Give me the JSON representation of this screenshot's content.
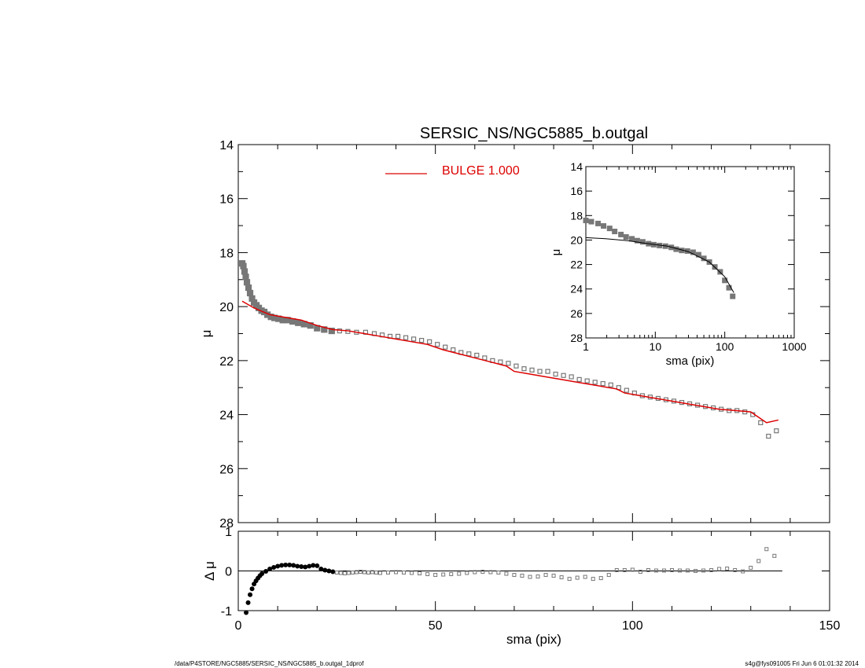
{
  "figure": {
    "footer_left": "/data/P4STORE/NGC5885/SERSIC_NS/NGC5885_b.outgal_1dprof",
    "footer_right": "s4g@fys091005  Fri Jun  6 01:01:32 2014",
    "colors": {
      "model": "#dd0000",
      "data": "#777777",
      "axes": "#000000"
    }
  },
  "chart_data": [
    {
      "panel": "main",
      "type": "scatter",
      "title": "SERSIC_NS/NGC5885_b.outgal",
      "xlabel": "",
      "ylabel": "μ",
      "xlim": [
        0,
        150
      ],
      "ylim": [
        28,
        14
      ],
      "y_inverted": true,
      "xticks": [
        0,
        50,
        100,
        150
      ],
      "yticks": [
        14,
        16,
        18,
        20,
        22,
        24,
        26,
        28
      ],
      "legend": {
        "entries": [
          "BULGE  1.000"
        ],
        "placement": "top-center"
      },
      "series": [
        {
          "name": "",
          "kind": "points",
          "x": [
            1.0,
            1.3,
            1.6,
            1.9,
            2.2,
            2.6,
            3.0,
            3.5,
            4.0,
            4.6,
            5.2,
            5.9,
            6.6,
            7.4,
            8.3,
            9.2,
            10.2,
            11.3,
            12.5,
            13.8,
            15.2,
            16.7,
            18.3,
            20.0,
            21.8,
            23.7,
            25.7,
            27.8,
            30.0,
            32.3,
            34.5,
            36.5,
            38.5,
            40.5,
            42.5,
            44.5,
            46.5,
            48.5,
            50.5,
            52.5,
            54.5,
            56.5,
            58.5,
            60.5,
            62.5,
            64.5,
            66.5,
            68.5,
            70.5,
            72.5,
            74.5,
            76.5,
            78.5,
            80.5,
            82.5,
            84.5,
            86.5,
            88.5,
            90.5,
            92.5,
            94.5,
            96.5,
            98.5,
            100.5,
            102.5,
            104.5,
            106.5,
            108.5,
            110.5,
            112.5,
            114.5,
            116.5,
            118.5,
            120.5,
            122.5,
            124.5,
            126.5,
            128.5,
            130.5,
            132.5,
            134.5,
            136.5
          ],
          "y": [
            18.4,
            18.5,
            18.7,
            18.9,
            19.1,
            19.3,
            19.5,
            19.7,
            19.85,
            19.95,
            20.05,
            20.15,
            20.2,
            20.3,
            20.38,
            20.42,
            20.45,
            20.5,
            20.5,
            20.55,
            20.6,
            20.65,
            20.7,
            20.8,
            20.85,
            20.9,
            20.9,
            20.92,
            20.95,
            20.95,
            21.0,
            21.05,
            21.1,
            21.1,
            21.15,
            21.2,
            21.25,
            21.3,
            21.4,
            21.5,
            21.6,
            21.7,
            21.75,
            21.8,
            21.9,
            22.0,
            22.05,
            22.1,
            22.2,
            22.3,
            22.35,
            22.4,
            22.4,
            22.5,
            22.55,
            22.6,
            22.7,
            22.75,
            22.8,
            22.85,
            22.9,
            23.0,
            23.1,
            23.2,
            23.3,
            23.35,
            23.4,
            23.45,
            23.5,
            23.55,
            23.6,
            23.65,
            23.7,
            23.75,
            23.8,
            23.85,
            23.85,
            23.9,
            24.0,
            24.3,
            24.8,
            24.6
          ]
        },
        {
          "name": "BULGE  1.000",
          "kind": "line",
          "x": [
            1,
            4,
            8,
            12,
            16,
            20,
            24,
            28,
            32,
            36,
            40,
            44,
            48,
            52,
            56,
            60,
            64,
            68,
            70,
            74,
            78,
            82,
            86,
            90,
            94,
            96,
            98,
            102,
            106,
            110,
            114,
            118,
            122,
            126,
            130,
            132,
            134,
            137
          ],
          "y": [
            19.8,
            20.05,
            20.3,
            20.4,
            20.5,
            20.7,
            20.85,
            20.9,
            21.0,
            21.1,
            21.2,
            21.3,
            21.4,
            21.6,
            21.75,
            21.9,
            22.05,
            22.2,
            22.4,
            22.5,
            22.6,
            22.7,
            22.8,
            22.9,
            23.0,
            23.05,
            23.2,
            23.3,
            23.4,
            23.5,
            23.6,
            23.7,
            23.8,
            23.85,
            23.9,
            24.1,
            24.3,
            24.2
          ]
        }
      ]
    },
    {
      "panel": "inset",
      "type": "scatter",
      "xlabel": "sma (pix)",
      "ylabel": "μ",
      "xscale": "log",
      "xlim": [
        1,
        1000
      ],
      "ylim": [
        28,
        14
      ],
      "y_inverted": true,
      "xticks": [
        1,
        10,
        100,
        1000
      ],
      "yticks": [
        14,
        16,
        18,
        20,
        22,
        24,
        26,
        28
      ],
      "series": [
        {
          "name": "",
          "kind": "points",
          "x": [
            1.0,
            1.2,
            1.5,
            1.8,
            2.2,
            2.6,
            3.2,
            3.8,
            4.6,
            5.5,
            6.6,
            8,
            9.5,
            11.5,
            14,
            17,
            20,
            24,
            29,
            35,
            42,
            50,
            60,
            72,
            86,
            100,
            115,
            130
          ],
          "y": [
            18.4,
            18.5,
            18.65,
            18.85,
            19.05,
            19.3,
            19.55,
            19.75,
            19.9,
            20.05,
            20.15,
            20.3,
            20.38,
            20.45,
            20.5,
            20.6,
            20.75,
            20.85,
            20.9,
            21.0,
            21.2,
            21.5,
            21.8,
            22.2,
            22.6,
            23.3,
            23.9,
            24.6
          ]
        },
        {
          "name": "",
          "kind": "line",
          "x": [
            1,
            2,
            4,
            8,
            15,
            30,
            60,
            100,
            135
          ],
          "y": [
            19.8,
            19.9,
            20.05,
            20.3,
            20.5,
            20.95,
            21.8,
            23.0,
            24.3
          ]
        }
      ]
    },
    {
      "panel": "residual",
      "type": "scatter",
      "xlabel": "sma (pix)",
      "ylabel": "Δ μ",
      "xlim": [
        0,
        150
      ],
      "ylim": [
        -1,
        1
      ],
      "xticks": [
        0,
        50,
        100,
        150
      ],
      "yticks": [
        -1,
        0,
        1
      ],
      "series": [
        {
          "name": "",
          "kind": "points",
          "x": [
            2,
            2.5,
            3,
            3.5,
            4,
            4.5,
            5,
            5.5,
            6,
            7,
            8,
            9,
            10,
            11,
            12,
            13,
            14,
            15,
            16,
            17,
            18,
            19,
            20,
            21,
            22,
            23,
            24,
            25,
            26,
            27,
            28,
            29,
            30,
            31,
            32,
            33,
            34,
            35,
            36,
            38,
            40,
            42,
            44,
            46,
            48,
            50,
            52,
            54,
            56,
            58,
            60,
            62,
            64,
            66,
            68,
            70,
            72,
            74,
            76,
            78,
            80,
            82,
            84,
            86,
            88,
            90,
            92,
            94,
            96,
            98,
            100,
            102,
            104,
            106,
            108,
            110,
            112,
            114,
            116,
            118,
            120,
            122,
            124,
            126,
            128,
            130,
            132,
            134,
            136
          ],
          "y": [
            -1.05,
            -0.8,
            -0.6,
            -0.45,
            -0.33,
            -0.25,
            -0.18,
            -0.12,
            -0.07,
            -0.01,
            0.05,
            0.09,
            0.12,
            0.14,
            0.15,
            0.15,
            0.14,
            0.12,
            0.11,
            0.1,
            0.12,
            0.14,
            0.13,
            0.05,
            0.02,
            0.0,
            -0.02,
            -0.04,
            -0.05,
            -0.06,
            -0.05,
            -0.04,
            -0.03,
            -0.02,
            -0.03,
            -0.04,
            -0.03,
            -0.04,
            -0.05,
            -0.04,
            -0.03,
            -0.04,
            -0.05,
            -0.06,
            -0.08,
            -0.1,
            -0.09,
            -0.08,
            -0.07,
            -0.05,
            -0.03,
            -0.02,
            -0.03,
            -0.04,
            -0.07,
            -0.1,
            -0.12,
            -0.15,
            -0.14,
            -0.1,
            -0.12,
            -0.16,
            -0.2,
            -0.17,
            -0.15,
            -0.2,
            -0.18,
            -0.1,
            0.02,
            0.02,
            0.03,
            -0.02,
            0.02,
            0.01,
            0.01,
            0.02,
            0.01,
            0.01,
            0.0,
            0.01,
            0.02,
            0.05,
            0.06,
            0.02,
            -0.01,
            0.08,
            0.25,
            0.55,
            0.38
          ]
        }
      ]
    }
  ]
}
